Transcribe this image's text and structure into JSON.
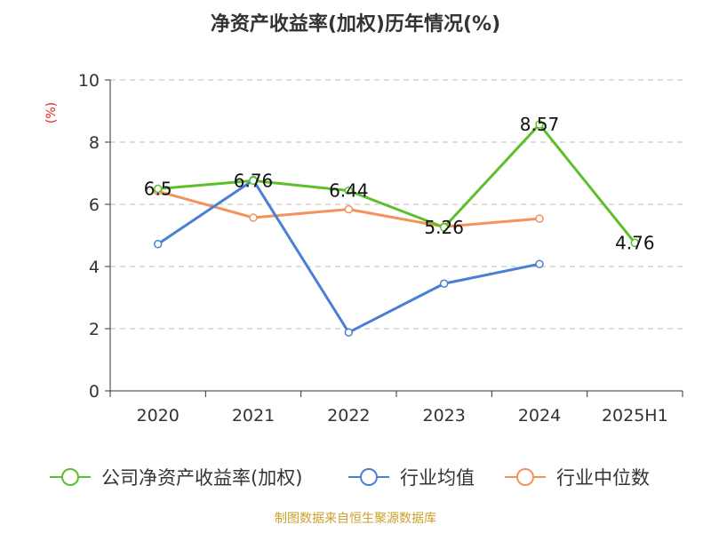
{
  "chart_data": {
    "type": "line",
    "title": "净资产收益率(加权)历年情况(%)",
    "ylabel": "(%)",
    "xlabel": "",
    "categories": [
      "2020",
      "2021",
      "2022",
      "2023",
      "2024",
      "2025H1"
    ],
    "ylim": [
      0,
      10
    ],
    "yticks": [
      0,
      2,
      4,
      6,
      8,
      10
    ],
    "grid": "horizontal dashed",
    "legend_position": "bottom",
    "series": [
      {
        "name": "公司净资产收益率(加权)",
        "color": "#5dbf2a",
        "values": [
          6.5,
          6.76,
          6.44,
          5.26,
          8.57,
          4.76
        ],
        "labels": [
          "6.5",
          "6.76",
          "6.44",
          "5.26",
          "8.57",
          "4.76"
        ]
      },
      {
        "name": "行业均值",
        "color": "#4a7fd6",
        "values": [
          4.72,
          6.78,
          1.88,
          3.45,
          4.08,
          null
        ]
      },
      {
        "name": "行业中位数",
        "color": "#f5915a",
        "values": [
          6.42,
          5.57,
          5.84,
          5.28,
          5.54,
          null
        ]
      }
    ]
  },
  "footer": {
    "source": "制图数据来自恒生聚源数据库"
  }
}
